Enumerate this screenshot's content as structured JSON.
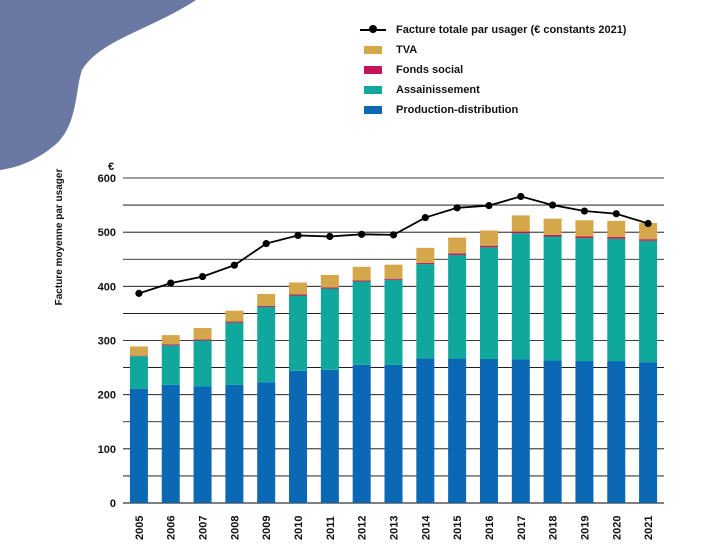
{
  "chart_data": {
    "type": "bar",
    "stacked": true,
    "title": "",
    "xlabel": "",
    "ylabel": "Facture moyenne par usager",
    "y_unit": "€",
    "ylim": [
      0,
      600
    ],
    "yticks": [
      0,
      100,
      200,
      300,
      400,
      500,
      600
    ],
    "categories": [
      "2005",
      "2006",
      "2007",
      "2008",
      "2009",
      "2010",
      "2011",
      "2012",
      "2013",
      "2014",
      "2015",
      "2016",
      "2017",
      "2018",
      "2019",
      "2020",
      "2021"
    ],
    "series": [
      {
        "name": "Production-distribution",
        "type": "bar",
        "color": "#0a68b4",
        "values": [
          211,
          218,
          215,
          218,
          223,
          244,
          246,
          255,
          255,
          267,
          267,
          266,
          265,
          263,
          262,
          262,
          260
        ]
      },
      {
        "name": "Assainissement",
        "type": "bar",
        "color": "#10a89c",
        "values": [
          60,
          73,
          85,
          115,
          139,
          139,
          150,
          154,
          157,
          174,
          191,
          206,
          233,
          229,
          227,
          226,
          224
        ]
      },
      {
        "name": "Fonds social",
        "type": "bar",
        "color": "#c4145a",
        "values": [
          1,
          2,
          2,
          2,
          2,
          2,
          2,
          2,
          2,
          2,
          3,
          3,
          3,
          3,
          3,
          3,
          3
        ]
      },
      {
        "name": "TVA",
        "type": "bar",
        "color": "#d4a84a",
        "values": [
          17,
          17,
          21,
          20,
          22,
          22,
          23,
          25,
          26,
          28,
          29,
          28,
          30,
          30,
          30,
          30,
          30
        ]
      },
      {
        "name": "Facture totale par usager (€ constants 2021)",
        "type": "line",
        "color": "#000000",
        "values": [
          387,
          406,
          418,
          439,
          479,
          494,
          492,
          496,
          495,
          527,
          545,
          549,
          566,
          550,
          539,
          534,
          516
        ]
      }
    ],
    "legend": [
      {
        "label": "Facture totale par usager (€ constants 2021)",
        "kind": "line",
        "color": "#000000"
      },
      {
        "label": "TVA",
        "kind": "swatch",
        "color": "#d4a84a"
      },
      {
        "label": "Fonds social",
        "kind": "swatch",
        "color": "#c4145a"
      },
      {
        "label": "Assainissement",
        "kind": "swatch",
        "color": "#10a89c"
      },
      {
        "label": "Production-distribution",
        "kind": "swatch",
        "color": "#0a68b4"
      }
    ],
    "legend_position": "top-right",
    "grid": true
  },
  "decoration": {
    "corner_color": "#6b78a3"
  }
}
